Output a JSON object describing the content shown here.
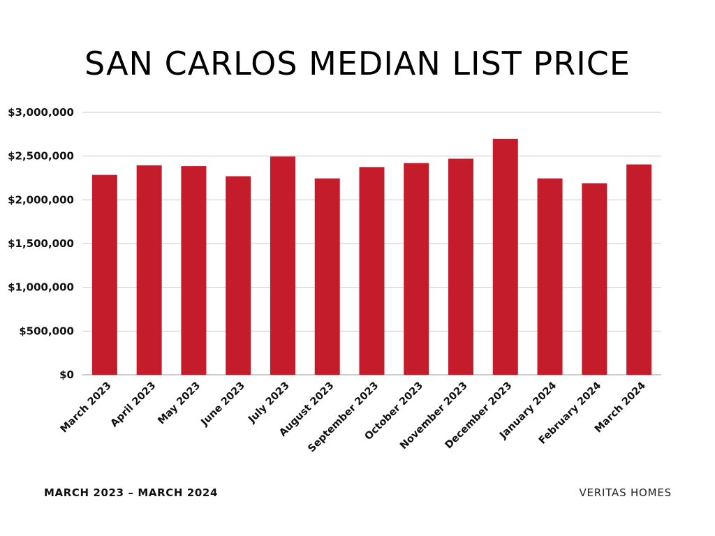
{
  "footer": {
    "left": "MARCH 2023 – MARCH 2024",
    "right": "VERITAS HOMES"
  },
  "chart_data": {
    "type": "bar",
    "title": "SAN CARLOS MEDIAN LIST PRICE",
    "xlabel": "",
    "ylabel": "",
    "categories": [
      "March 2023",
      "April 2023",
      "May 2023",
      "June 2023",
      "July 2023",
      "August 2023",
      "September 2023",
      "October 2023",
      "November 2023",
      "December 2023",
      "January 2024",
      "February 2024",
      "March 2024"
    ],
    "values": [
      2285000,
      2395000,
      2385000,
      2270000,
      2495000,
      2245000,
      2375000,
      2420000,
      2470000,
      2698000,
      2245000,
      2190000,
      2405000
    ],
    "ylim": [
      0,
      3000000
    ],
    "yticks": [
      0,
      500000,
      1000000,
      1500000,
      2000000,
      2500000,
      3000000
    ],
    "ytick_labels": [
      "$0",
      "$500,000",
      "$1,000,000",
      "$1,500,000",
      "$2,000,000",
      "$2,500,000",
      "$3,000,000"
    ],
    "bar_color": "#c41c2b",
    "grid": true,
    "legend": "none"
  }
}
